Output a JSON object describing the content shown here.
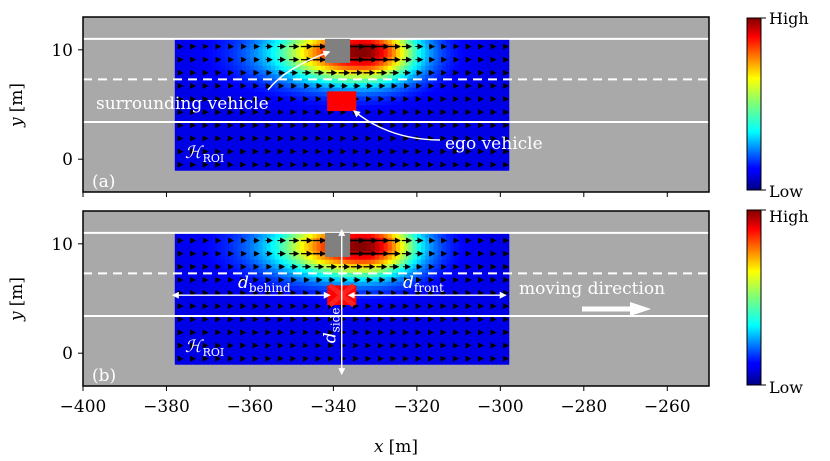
{
  "chart_data": {
    "type": "heatmap",
    "x_axis": {
      "label_var": "x",
      "label_unit": "[m]",
      "range": [
        -400,
        -250
      ],
      "ticks": [
        -400,
        -380,
        -360,
        -340,
        -320,
        -300,
        -280,
        -260
      ],
      "tick_labels": [
        "−400",
        "−380",
        "−360",
        "−340",
        "−320",
        "−300",
        "−280",
        "−260"
      ]
    },
    "y_axis": {
      "label_var": "y",
      "label_unit": "[m]",
      "range": [
        -3,
        13
      ],
      "ticks": [
        0,
        10
      ],
      "tick_labels": [
        "0",
        "10"
      ]
    },
    "colorbar": {
      "high_label": "High",
      "low_label": "Low",
      "colormap": "jet"
    },
    "road": {
      "solid_lines_y": [
        11,
        3.4
      ],
      "dashed_line_y": 7.3,
      "background_color": "#a9a9a9",
      "line_color": "#ffffff"
    },
    "roi": {
      "x": [
        -378,
        -298
      ],
      "y": [
        -1,
        11
      ]
    },
    "surrounding_vehicle": {
      "x": [
        -342,
        -336
      ],
      "y": [
        8.8,
        11
      ],
      "color": "#808080"
    },
    "ego_vehicle": {
      "x": [
        -341.5,
        -334.5
      ],
      "y": [
        4.4,
        6.2
      ],
      "color": "#ff0000"
    },
    "field_peak": {
      "x": -333,
      "y": 9.8
    },
    "panels": [
      {
        "id": "a",
        "tag": "(a)",
        "roi_label_main": "ℋ",
        "roi_label_sub": "ROI",
        "annotations": [
          {
            "text": "surrounding vehicle",
            "target": [
              -340,
              10.0
            ]
          },
          {
            "text": "ego vehicle",
            "target": [
              -337,
              4.6
            ]
          }
        ]
      },
      {
        "id": "b",
        "tag": "(b)",
        "roi_label_main": "ℋ",
        "roi_label_sub": "ROI",
        "distances": {
          "behind": {
            "main": "d",
            "sub": "behind"
          },
          "front": {
            "main": "d",
            "sub": "front"
          },
          "side": {
            "main": "d",
            "sub": "side"
          }
        },
        "direction_label": "moving direction"
      }
    ]
  }
}
